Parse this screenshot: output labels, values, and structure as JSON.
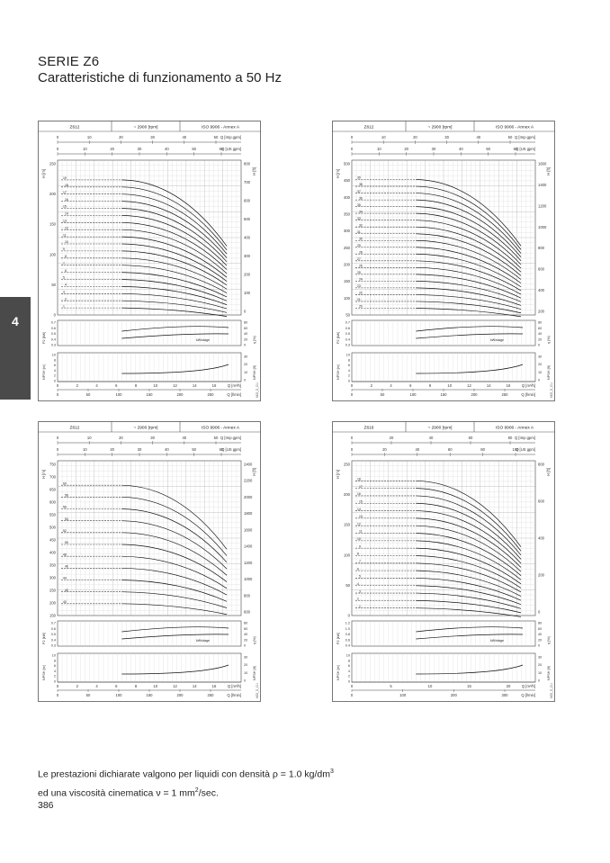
{
  "header": {
    "series": "SERIE Z6",
    "subtitle": "Caratteristiche di funzionamento a 50 Hz"
  },
  "side_tab": {
    "label": "4"
  },
  "footer": {
    "line1_a": "Le prestazioni dichiarate valgono per liquidi con densità ρ = 1.0 kg/dm",
    "line1_sup": "3",
    "line2_a": "ed una viscosità cinematica ν = 1 mm",
    "line2_sup": "2",
    "line2_b": "/sec."
  },
  "page_number": "386",
  "chart_data": [
    {
      "type": "line",
      "model": "Z612",
      "speed": "~ 2900 [rpm]",
      "standard": "ISO 9906 - Annex A",
      "x_top_imp": [
        "0",
        "10",
        "20",
        "30",
        "40",
        "50"
      ],
      "x_top_imp_unit": "Q [Imp gpm]",
      "x_top_us": [
        "0",
        "10",
        "20",
        "30",
        "40",
        "50",
        "60"
      ],
      "x_top_us_unit": "Q [US gpm]",
      "y_left": [
        "0",
        "50",
        "100",
        "150",
        "200",
        "250"
      ],
      "y_left_unit": "H [m]",
      "y_right": [
        "0",
        "100",
        "200",
        "300",
        "400",
        "500",
        "600",
        "700",
        "800"
      ],
      "y_right_unit": "H [ft]",
      "stage_labels": [
        "19",
        "18",
        "17",
        "16",
        "15",
        "14",
        "13",
        "12",
        "11",
        "10",
        "9",
        "8",
        "7",
        "6",
        "5",
        "4",
        "3",
        "2",
        "1"
      ],
      "power_left": [
        "0.7",
        "0.6",
        "0.5",
        "0.4",
        "0.3"
      ],
      "power_left_unit": "P2 [kW]",
      "power_right": [
        "80",
        "60",
        "40",
        "20",
        "0"
      ],
      "power_right_unit": "η [%]",
      "power_note": "kW/stage",
      "npsh_left": [
        "10",
        "8",
        "6",
        "4",
        "2",
        "0"
      ],
      "npsh_left_unit": "NPSH [m]",
      "npsh_right": [
        "30",
        "20",
        "10",
        "0"
      ],
      "npsh_right_unit": "NPSH [ft]",
      "x_q_m3h": [
        "0",
        "2",
        "4",
        "6",
        "8",
        "10",
        "12",
        "14",
        "16"
      ],
      "x_q_m3h_unit": "Q [m³/h]",
      "x_q_lmin": [
        "0",
        "50",
        "100",
        "150",
        "200",
        "250"
      ],
      "x_q_lmin_unit": "Q [l/min]",
      "side_code": "M02_D_CU"
    },
    {
      "type": "line",
      "model": "Z612",
      "speed": "~ 2900 [rpm]",
      "standard": "ISO 9906 - Annex A",
      "x_top_imp": [
        "0",
        "10",
        "20",
        "30",
        "40",
        "50"
      ],
      "x_top_imp_unit": "Q [Imp gpm]",
      "x_top_us": [
        "0",
        "10",
        "20",
        "30",
        "40",
        "50",
        "60"
      ],
      "x_top_us_unit": "Q [US gpm]",
      "y_left": [
        "50",
        "100",
        "150",
        "200",
        "250",
        "300",
        "350",
        "400",
        "450",
        "500"
      ],
      "y_left_unit": "H [m]",
      "y_right": [
        "200",
        "400",
        "600",
        "800",
        "1000",
        "1200",
        "1400",
        "1600"
      ],
      "y_right_unit": "H [ft]",
      "stage_labels": [
        "39",
        "38",
        "37",
        "36",
        "35",
        "34",
        "33",
        "32",
        "31",
        "30",
        "29",
        "28",
        "27",
        "26",
        "25",
        "24",
        "23",
        "22",
        "21",
        "20"
      ],
      "power_left": [
        "0.7",
        "0.6",
        "0.5",
        "0.4",
        "0.3"
      ],
      "power_left_unit": "P2 [kW]",
      "power_right": [
        "80",
        "60",
        "40",
        "20",
        "0"
      ],
      "power_right_unit": "η [%]",
      "power_note": "kW/stage",
      "npsh_left": [
        "10",
        "8",
        "6",
        "4",
        "2",
        "0"
      ],
      "npsh_left_unit": "NPSH [m]",
      "npsh_right": [
        "30",
        "20",
        "10",
        "0"
      ],
      "npsh_right_unit": "NPSH [ft]",
      "x_q_m3h": [
        "0",
        "2",
        "4",
        "6",
        "8",
        "10",
        "12",
        "14",
        "16"
      ],
      "x_q_m3h_unit": "Q [m³/h]",
      "x_q_lmin": [
        "0",
        "50",
        "100",
        "150",
        "200",
        "250"
      ],
      "x_q_lmin_unit": "Q [l/min]",
      "side_code": "M02_D_CU"
    },
    {
      "type": "line",
      "model": "Z612",
      "speed": "~ 2900 [rpm]",
      "standard": "ISO 9906 - Annex A",
      "x_top_imp": [
        "0",
        "10",
        "20",
        "30",
        "40",
        "50"
      ],
      "x_top_imp_unit": "Q [Imp gpm]",
      "x_top_us": [
        "0",
        "10",
        "20",
        "30",
        "40",
        "50",
        "60"
      ],
      "x_top_us_unit": "Q [US gpm]",
      "y_left": [
        "150",
        "200",
        "250",
        "300",
        "350",
        "400",
        "450",
        "500",
        "550",
        "600",
        "650",
        "700",
        "750"
      ],
      "y_left_unit": "H [m]",
      "y_right": [
        "600",
        "800",
        "1000",
        "1200",
        "1400",
        "1600",
        "1800",
        "2000",
        "2200",
        "2400"
      ],
      "y_right_unit": "H [ft]",
      "stage_labels": [
        "60",
        "58",
        "56",
        "54",
        "52",
        "50",
        "48",
        "46",
        "44",
        "42",
        "40"
      ],
      "power_left": [
        "0.7",
        "0.6",
        "0.5",
        "0.4",
        "0.3"
      ],
      "power_left_unit": "P2 [kW]",
      "power_right": [
        "80",
        "60",
        "40",
        "20",
        "0"
      ],
      "power_right_unit": "η [%]",
      "power_note": "kW/stage",
      "npsh_left": [
        "10",
        "8",
        "6",
        "4",
        "2",
        "0"
      ],
      "npsh_left_unit": "NPSH [m]",
      "npsh_right": [
        "30",
        "20",
        "10",
        "0"
      ],
      "npsh_right_unit": "NPSH [ft]",
      "x_q_m3h": [
        "0",
        "2",
        "4",
        "6",
        "8",
        "10",
        "12",
        "14",
        "16"
      ],
      "x_q_m3h_unit": "Q [m³/h]",
      "x_q_lmin": [
        "0",
        "50",
        "100",
        "150",
        "200",
        "250"
      ],
      "x_q_lmin_unit": "Q [l/min]",
      "side_code": "M02_D_CU"
    },
    {
      "type": "line",
      "model": "Z616",
      "speed": "~ 2900 [rpm]",
      "standard": "ISO 9906 - Annex A",
      "x_top_imp": [
        "0",
        "20",
        "40",
        "60",
        "80"
      ],
      "x_top_imp_unit": "Q [Imp gpm]",
      "x_top_us": [
        "0",
        "20",
        "40",
        "60",
        "80",
        "100"
      ],
      "x_top_us_unit": "Q [US gpm]",
      "y_left": [
        "0",
        "50",
        "100",
        "150",
        "200",
        "250"
      ],
      "y_left_unit": "H [m]",
      "y_right": [
        "0",
        "200",
        "400",
        "600",
        "800"
      ],
      "y_right_unit": "H [ft]",
      "stage_labels": [
        "18",
        "17",
        "16",
        "15",
        "14",
        "13",
        "12",
        "11",
        "10",
        "9",
        "8",
        "7",
        "6",
        "5",
        "4",
        "3",
        "2",
        "1"
      ],
      "power_left": [
        "1.2",
        "1.0",
        "0.8",
        "0.6",
        "0.4"
      ],
      "power_left_unit": "P2 [kW]",
      "power_right": [
        "80",
        "60",
        "40",
        "20",
        "0"
      ],
      "power_right_unit": "η [%]",
      "power_note": "kW/stage",
      "npsh_left": [
        "10",
        "8",
        "6",
        "4",
        "2",
        "0"
      ],
      "npsh_left_unit": "NPSH [m]",
      "npsh_right": [
        "30",
        "20",
        "10",
        "0"
      ],
      "npsh_right_unit": "NPSH [ft]",
      "x_q_m3h": [
        "0",
        "5",
        "10",
        "15",
        "20"
      ],
      "x_q_m3h_unit": "Q [m³/h]",
      "x_q_lmin": [
        "0",
        "100",
        "200",
        "300"
      ],
      "x_q_lmin_unit": "Q [l/min]",
      "side_code": "M02_D_CU"
    }
  ]
}
